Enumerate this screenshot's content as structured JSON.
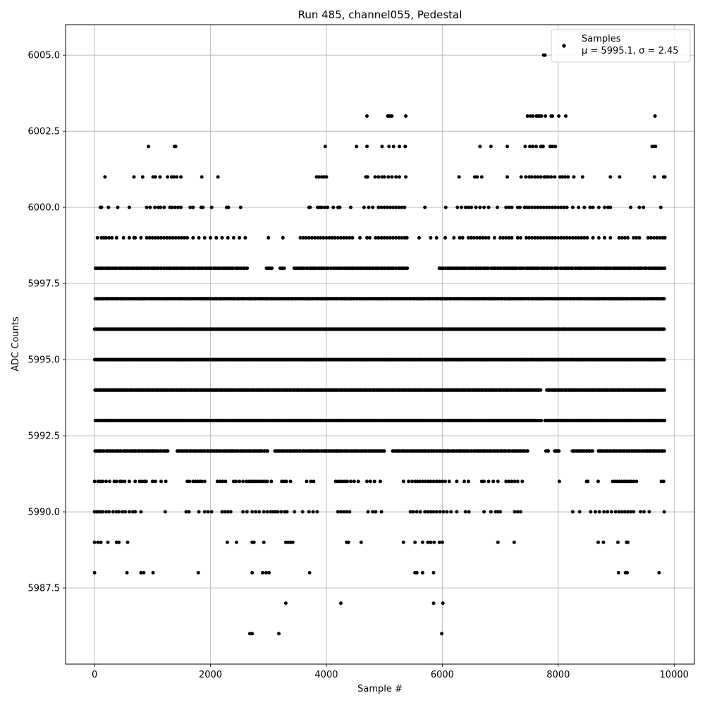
{
  "chart_data": {
    "type": "scatter",
    "title": "Run 485, channel055, Pedestal",
    "xlabel": "Sample #",
    "ylabel": "ADC Counts",
    "xlim": [
      -500,
      10350
    ],
    "ylim": [
      5985.0,
      6006.0
    ],
    "xticks": [
      0,
      2000,
      4000,
      6000,
      8000,
      10000
    ],
    "yticks": [
      5987.5,
      5990.0,
      5992.5,
      5995.0,
      5997.5,
      6000.0,
      6002.5,
      6005.0
    ],
    "xtick_labels": [
      "0",
      "2000",
      "4000",
      "6000",
      "8000",
      "10000"
    ],
    "ytick_labels": [
      "5987.5",
      "5990.0",
      "5992.5",
      "5995.0",
      "5997.5",
      "6000.0",
      "6002.5",
      "6005.0"
    ],
    "grid": true,
    "legend_position": "top-right",
    "marker_color": "#000000",
    "series": [
      {
        "name": "Samples",
        "legend_stats": "μ = 5995.1, σ = 2.45",
        "sample_range": [
          0,
          9840
        ],
        "levels": [
          {
            "y": 6005,
            "x": [
              7750,
              7770
            ]
          },
          {
            "y": 6003,
            "x": [
              4700,
              5060,
              5080,
              5100,
              5130,
              5370,
              7470,
              7520,
              7560,
              7620,
              7650,
              7680,
              7710,
              7780,
              7880,
              7900,
              8010,
              8130,
              9670
            ]
          },
          {
            "y": 6002,
            "x": [
              930,
              1380,
              1400,
              3980,
              4520,
              4700,
              4960,
              5080,
              5160,
              5260,
              5360,
              6650,
              6840,
              7120,
              7430,
              7510,
              7560,
              7620,
              7700,
              7720,
              7740,
              7860,
              7900,
              7950,
              9620,
              9650,
              9680
            ]
          },
          {
            "y": 6001,
            "x": [
              180,
              680,
              830,
              1010,
              1050,
              1130,
              1260,
              1330,
              1370,
              1420,
              1490,
              1850,
              2130,
              3830,
              3870,
              3920,
              3960,
              4000,
              4680,
              4710,
              4840,
              4900,
              4960,
              5000,
              5070,
              5130,
              5200,
              5260,
              5370,
              6290,
              6560,
              6600,
              6680,
              7120,
              7360,
              7440,
              7500,
              7540,
              7600,
              7650,
              7700,
              7760,
              7790,
              7830,
              7880,
              7940,
              8030,
              8070,
              8120,
              8170,
              8270,
              8420,
              8900,
              9060,
              9660,
              9820,
              9840
            ]
          },
          {
            "y": 6000,
            "x": [
              100,
              120,
              240,
              400,
              600,
              900,
              960,
              1040,
              1100,
              1140,
              1200,
              1300,
              1340,
              1390,
              1440,
              1490,
              1650,
              1700,
              1840,
              1870,
              2020,
              2280,
              2310,
              2520,
              3700,
              3720,
              3850,
              3890,
              3920,
              3970,
              4020,
              4120,
              4200,
              4230,
              4420,
              4650,
              4730,
              4800,
              4900,
              4950,
              5000,
              5050,
              5100,
              5150,
              5200,
              5250,
              5300,
              5350,
              5700,
              6060,
              6260,
              6330,
              6400,
              6450,
              6500,
              6580,
              6650,
              6720,
              6800,
              6950,
              7100,
              7150,
              7200,
              7300,
              7340,
              7420,
              7460,
              7500,
              7550,
              7600,
              7650,
              7700,
              7750,
              7800,
              7850,
              7900,
              7950,
              8000,
              8050,
              8100,
              8150,
              8250,
              8350,
              8450,
              8550,
              8600,
              8700,
              8800,
              8860,
              8900,
              9250,
              9400,
              9470,
              9770
            ]
          },
          {
            "y": 5999,
            "x": [
              50,
              120,
              160,
              200,
              250,
              300,
              380,
              500,
              600,
              680,
              700,
              800,
              900,
              950,
              1000,
              1050,
              1100,
              1150,
              1200,
              1250,
              1300,
              1350,
              1400,
              1450,
              1500,
              1550,
              1600,
              1700,
              1800,
              1900,
              2000,
              2100,
              2200,
              2300,
              2400,
              2500,
              2600,
              3000,
              3250,
              3550,
              3600,
              3650,
              3700,
              3750,
              3800,
              3850,
              3900,
              3950,
              4000,
              4050,
              4100,
              4150,
              4200,
              4250,
              4300,
              4350,
              4400,
              4450,
              4580,
              4700,
              4750,
              4850,
              4900,
              4950,
              5000,
              5050,
              5100,
              5150,
              5200,
              5250,
              5300,
              5350,
              5390,
              5600,
              5800,
              5900,
              6050,
              6200,
              6300,
              6350,
              6450,
              6500,
              6550,
              6600,
              6650,
              6700,
              6750,
              6800,
              6900,
              7000,
              7050,
              7100,
              7150,
              7200,
              7300,
              7350,
              7450,
              7500,
              7550,
              7600,
              7650,
              7700,
              7750,
              7800,
              7850,
              7900,
              7950,
              8000,
              8050,
              8100,
              8150,
              8200,
              8250,
              8300,
              8350,
              8400,
              8450,
              8500,
              8600,
              8700,
              8800,
              8900,
              9050,
              9100,
              9150,
              9200,
              9300,
              9350,
              9400,
              9550,
              9600,
              9650,
              9700,
              9750,
              9800,
              9840
            ]
          }
        ],
        "dense_levels": [
          {
            "y": 5998,
            "x_range": [
              0,
              9840
            ],
            "count": 420,
            "gaps": [
              [
                2650,
                2950
              ],
              [
                3070,
                3200
              ],
              [
                3280,
                3420
              ],
              [
                5400,
                5930
              ]
            ]
          },
          {
            "y": 5997,
            "x_range": [
              0,
              9840
            ],
            "count": 620,
            "gaps": []
          },
          {
            "y": 5996,
            "x_range": [
              0,
              9840
            ],
            "count": 700,
            "gaps": []
          },
          {
            "y": 5995,
            "x_range": [
              0,
              9840
            ],
            "count": 720,
            "gaps": []
          },
          {
            "y": 5994,
            "x_range": [
              0,
              9840
            ],
            "count": 680,
            "gaps": [
              [
                7700,
                7790
              ]
            ]
          },
          {
            "y": 5993,
            "x_range": [
              0,
              9840
            ],
            "count": 620,
            "gaps": [
              [
                7720,
                7760
              ],
              [
                8000,
                8010
              ]
            ]
          },
          {
            "y": 5992,
            "x_range": [
              0,
              9840
            ],
            "count": 430,
            "gaps": [
              [
                1280,
                1420
              ],
              [
                3000,
                3100
              ],
              [
                5020,
                5120
              ],
              [
                7480,
                7780
              ],
              [
                7850,
                7930
              ],
              [
                8030,
                8230
              ],
              [
                8600,
                8680
              ]
            ]
          }
        ],
        "sparse_levels": [
          {
            "y": 5991,
            "x": [
              0,
              60,
              100,
              140,
              200,
              260,
              340,
              380,
              440,
              470,
              520,
              600,
              700,
              780,
              820,
              860,
              890,
              1000,
              1050,
              1150,
              1230,
              1600,
              1640,
              1700,
              1740,
              1780,
              1820,
              1850,
              1900,
              2120,
              2170,
              2210,
              2260,
              2400,
              2440,
              2500,
              2560,
              2620,
              2660,
              2700,
              2740,
              2780,
              2820,
              2860,
              2900,
              2940,
              2980,
              3050,
              3230,
              3270,
              3310,
              3380,
              3660,
              3730,
              3780,
              4160,
              4200,
              4240,
              4280,
              4320,
              4360,
              4420,
              4480,
              4550,
              4700,
              4760,
              4830,
              4930,
              5330,
              5420,
              5480,
              5530,
              5570,
              5610,
              5660,
              5710,
              5760,
              5800,
              5850,
              5900,
              5950,
              6000,
              6050,
              6120,
              6250,
              6380,
              6450,
              6680,
              6720,
              6800,
              6880,
              6960,
              7100,
              7150,
              7200,
              7250,
              7300,
              7380,
              8020,
              8490,
              8510,
              8690,
              8940,
              8980,
              9020,
              9060,
              9100,
              9140,
              9180,
              9220,
              9260,
              9300,
              9350,
              9780,
              9820
            ]
          },
          {
            "y": 5990,
            "x": [
              0,
              30,
              60,
              100,
              140,
              200,
              250,
              320,
              380,
              420,
              480,
              530,
              600,
              660,
              700,
              800,
              1220,
              1580,
              1630,
              1800,
              1900,
              1960,
              2020,
              2200,
              2250,
              2300,
              2350,
              2560,
              2630,
              2720,
              2780,
              2840,
              2920,
              2980,
              3040,
              3080,
              3120,
              3160,
              3220,
              3280,
              3320,
              3450,
              3590,
              3700,
              3770,
              3840,
              4200,
              4250,
              4300,
              4350,
              4400,
              4720,
              4800,
              4850,
              4950,
              5450,
              5500,
              5560,
              5620,
              5700,
              5750,
              5800,
              5850,
              5900,
              5960,
              6020,
              6080,
              6150,
              6250,
              6400,
              6460,
              6720,
              6840,
              6920,
              6960,
              7000,
              7250,
              7300,
              7350,
              8250,
              8370,
              8560,
              8640,
              8710,
              8790,
              8850,
              8920,
              8990,
              9050,
              9100,
              9150,
              9200,
              9250,
              9300,
              9420,
              9480,
              9570,
              9830
            ]
          },
          {
            "y": 5989,
            "x": [
              0,
              60,
              110,
              230,
              380,
              420,
              570,
              2290,
              2450,
              2720,
              2750,
              2920,
              3300,
              3340,
              3380,
              3420,
              4350,
              4380,
              4600,
              5330,
              5530,
              5660,
              5750,
              5800,
              5860,
              5950,
              6000,
              6960,
              7240,
              8690,
              8780,
              9030,
              9180,
              9200
            ]
          },
          {
            "y": 5988,
            "x": [
              0,
              560,
              800,
              850,
              1010,
              1790,
              2720,
              2900,
              2960,
              3010,
              3710,
              5530,
              5560,
              5660,
              5850,
              9040,
              9160,
              9190,
              9740
            ]
          },
          {
            "y": 5987,
            "x": [
              3300,
              4250,
              5850,
              6010
            ]
          },
          {
            "y": 5986,
            "x": [
              2680,
              2720,
              3180,
              5990
            ]
          }
        ]
      }
    ]
  }
}
